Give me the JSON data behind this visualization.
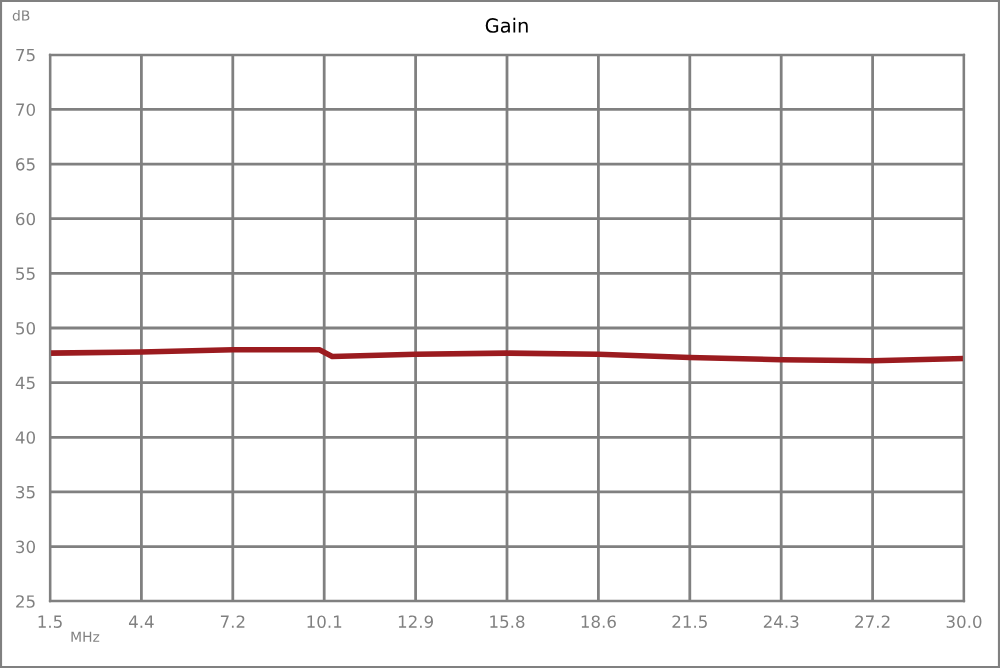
{
  "chart_data": {
    "type": "line",
    "title": "Gain",
    "xlabel": "MHz",
    "ylabel": "dB",
    "x": [
      1.5,
      4.35,
      7.2,
      9.9,
      10.3,
      12.9,
      15.75,
      18.6,
      21.45,
      24.3,
      27.15,
      30.0
    ],
    "series": [
      {
        "color": "#9b1b1f",
        "values": [
          47.7,
          47.8,
          48.0,
          48.0,
          47.4,
          47.6,
          47.7,
          47.6,
          47.3,
          47.1,
          47.0,
          47.2
        ]
      }
    ],
    "xlim": [
      1.5,
      30.0
    ],
    "xticks": [
      1.5,
      {
        "value": 4.35,
        "label": "4.4"
      },
      7.2,
      {
        "value": 10.05,
        "label": "10.1"
      },
      12.9,
      {
        "value": 15.75,
        "label": "15.8"
      },
      18.6,
      {
        "value": 21.45,
        "label": "21.5"
      },
      24.3,
      {
        "value": 27.15,
        "label": "27.2"
      },
      {
        "value": 30.0,
        "label": "30.0"
      }
    ],
    "ylim": [
      25,
      75
    ],
    "yticks": [
      25,
      30,
      35,
      40,
      45,
      50,
      55,
      60,
      65,
      70,
      75
    ],
    "grid": true,
    "marker": "none",
    "line_style": "solid"
  }
}
